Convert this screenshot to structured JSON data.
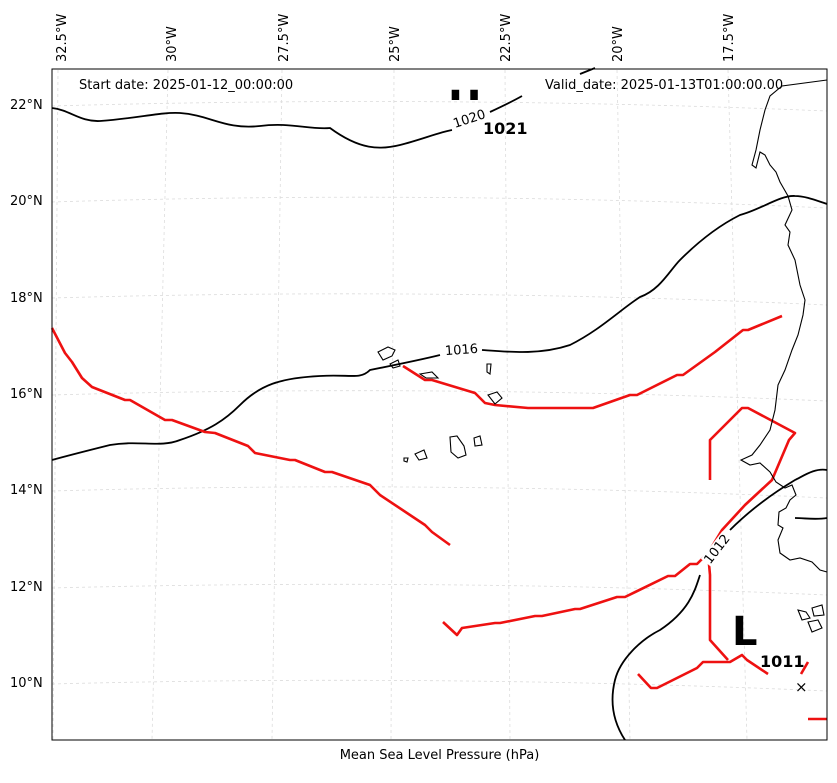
{
  "header": {
    "start_date": "Start date: 2025-01-12_00:00:00",
    "valid_date": "Valid_date: 2025-01-13T01:00:00.00"
  },
  "footer": {
    "caption": "Mean Sea Level Pressure (hPa)"
  },
  "axes": {
    "longitude_ticks": [
      "32.5°W",
      "30°W",
      "27.5°W",
      "25°W",
      "22.5°W",
      "20°W",
      "17.5°W"
    ],
    "latitude_ticks": [
      "22°N",
      "20°N",
      "18°N",
      "16°N",
      "14°N",
      "12°N",
      "10°N"
    ]
  },
  "isobar_labels": [
    "1020",
    "1016",
    "1012"
  ],
  "pressure_centers": [
    {
      "letter": "H",
      "value": "1021"
    },
    {
      "letter": "L",
      "value": "1011"
    }
  ],
  "marker": "×",
  "colors": {
    "isobar": "#000000",
    "front": "#ee1111",
    "grid": "#d9d9d9",
    "frame": "#000000"
  }
}
